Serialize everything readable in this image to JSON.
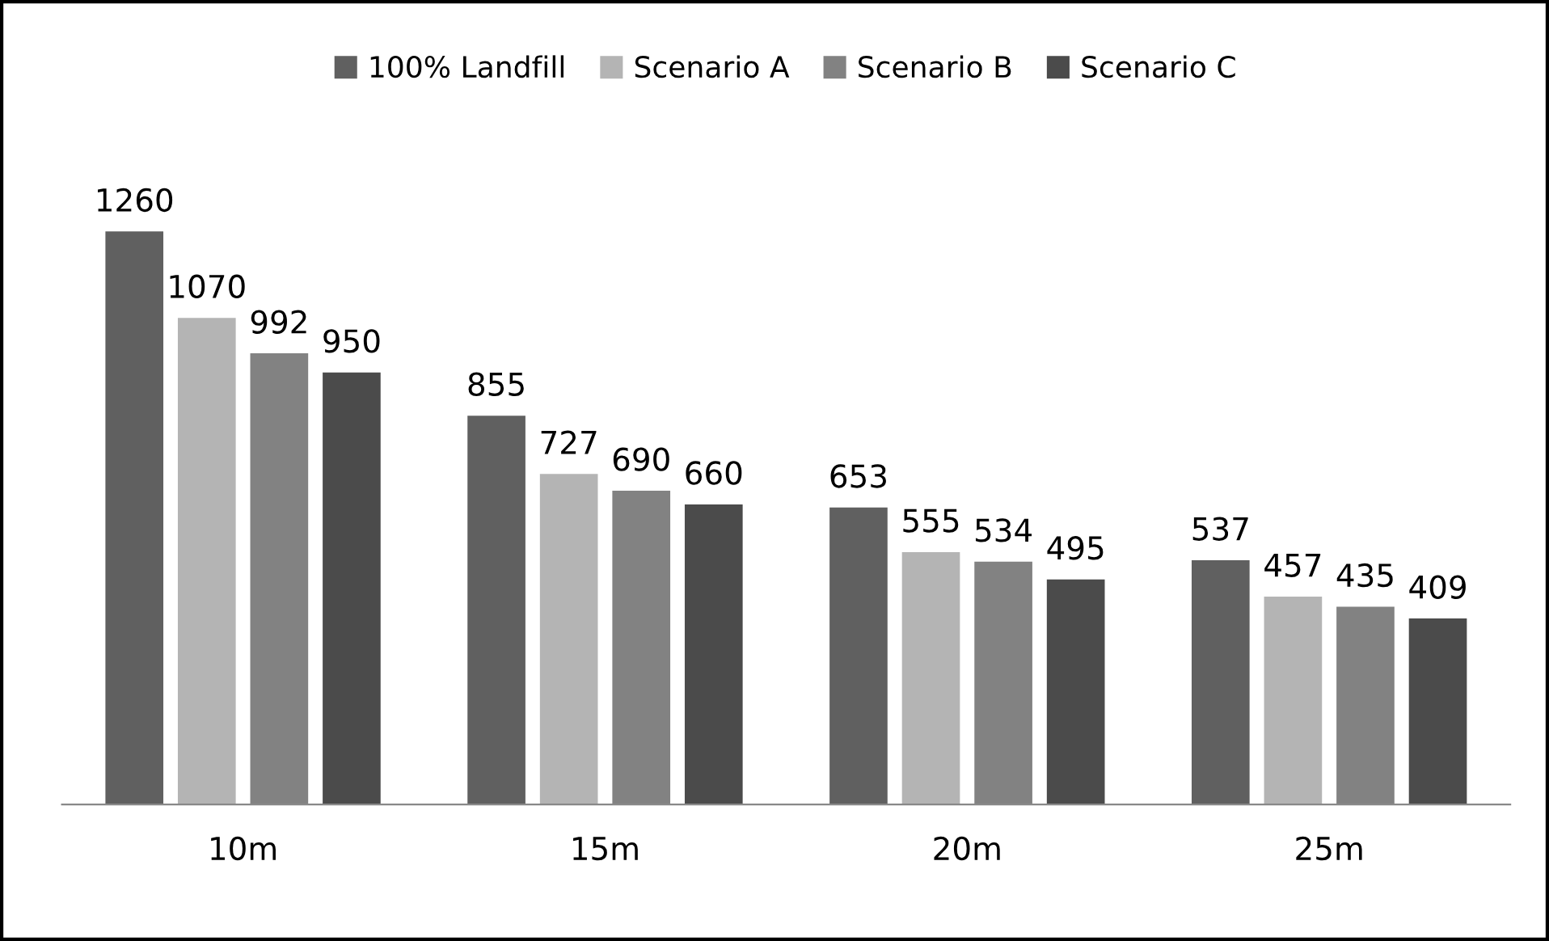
{
  "chart_data": {
    "type": "bar",
    "categories": [
      "10m",
      "15m",
      "20m",
      "25m"
    ],
    "series": [
      {
        "name": "100% Landfill",
        "color": "#606060",
        "values": [
          1260,
          855,
          653,
          537
        ]
      },
      {
        "name": "Scenario A",
        "color": "#b4b4b4",
        "values": [
          1070,
          727,
          555,
          457
        ]
      },
      {
        "name": "Scenario B",
        "color": "#828282",
        "values": [
          992,
          690,
          534,
          435
        ]
      },
      {
        "name": "Scenario C",
        "color": "#4b4b4b",
        "values": [
          950,
          660,
          495,
          409
        ]
      }
    ],
    "data_labels": true,
    "legend": "top",
    "grid": false
  }
}
